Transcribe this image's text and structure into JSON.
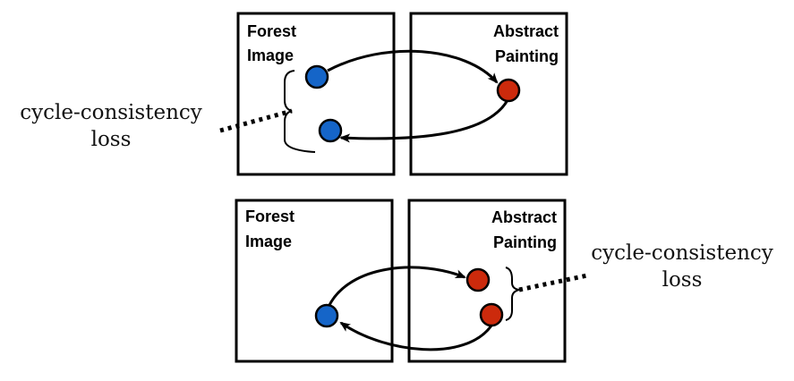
{
  "top_panel": {
    "left_box": {
      "label_line1": "Forest",
      "label_line2": "Image"
    },
    "right_box": {
      "label_line1": "Abstract",
      "label_line2": "Painting"
    },
    "loss": {
      "line1": "cycle-consistency",
      "line2": "loss"
    }
  },
  "bottom_panel": {
    "left_box": {
      "label_line1": "Forest",
      "label_line2": "Image"
    },
    "right_box": {
      "label_line1": "Abstract",
      "label_line2": "Painting"
    },
    "loss": {
      "line1": "cycle-consistency",
      "line2": "loss"
    }
  },
  "colors": {
    "forest_point": "#1565c8",
    "painting_point": "#cc2a0c",
    "stroke": "#000000"
  }
}
